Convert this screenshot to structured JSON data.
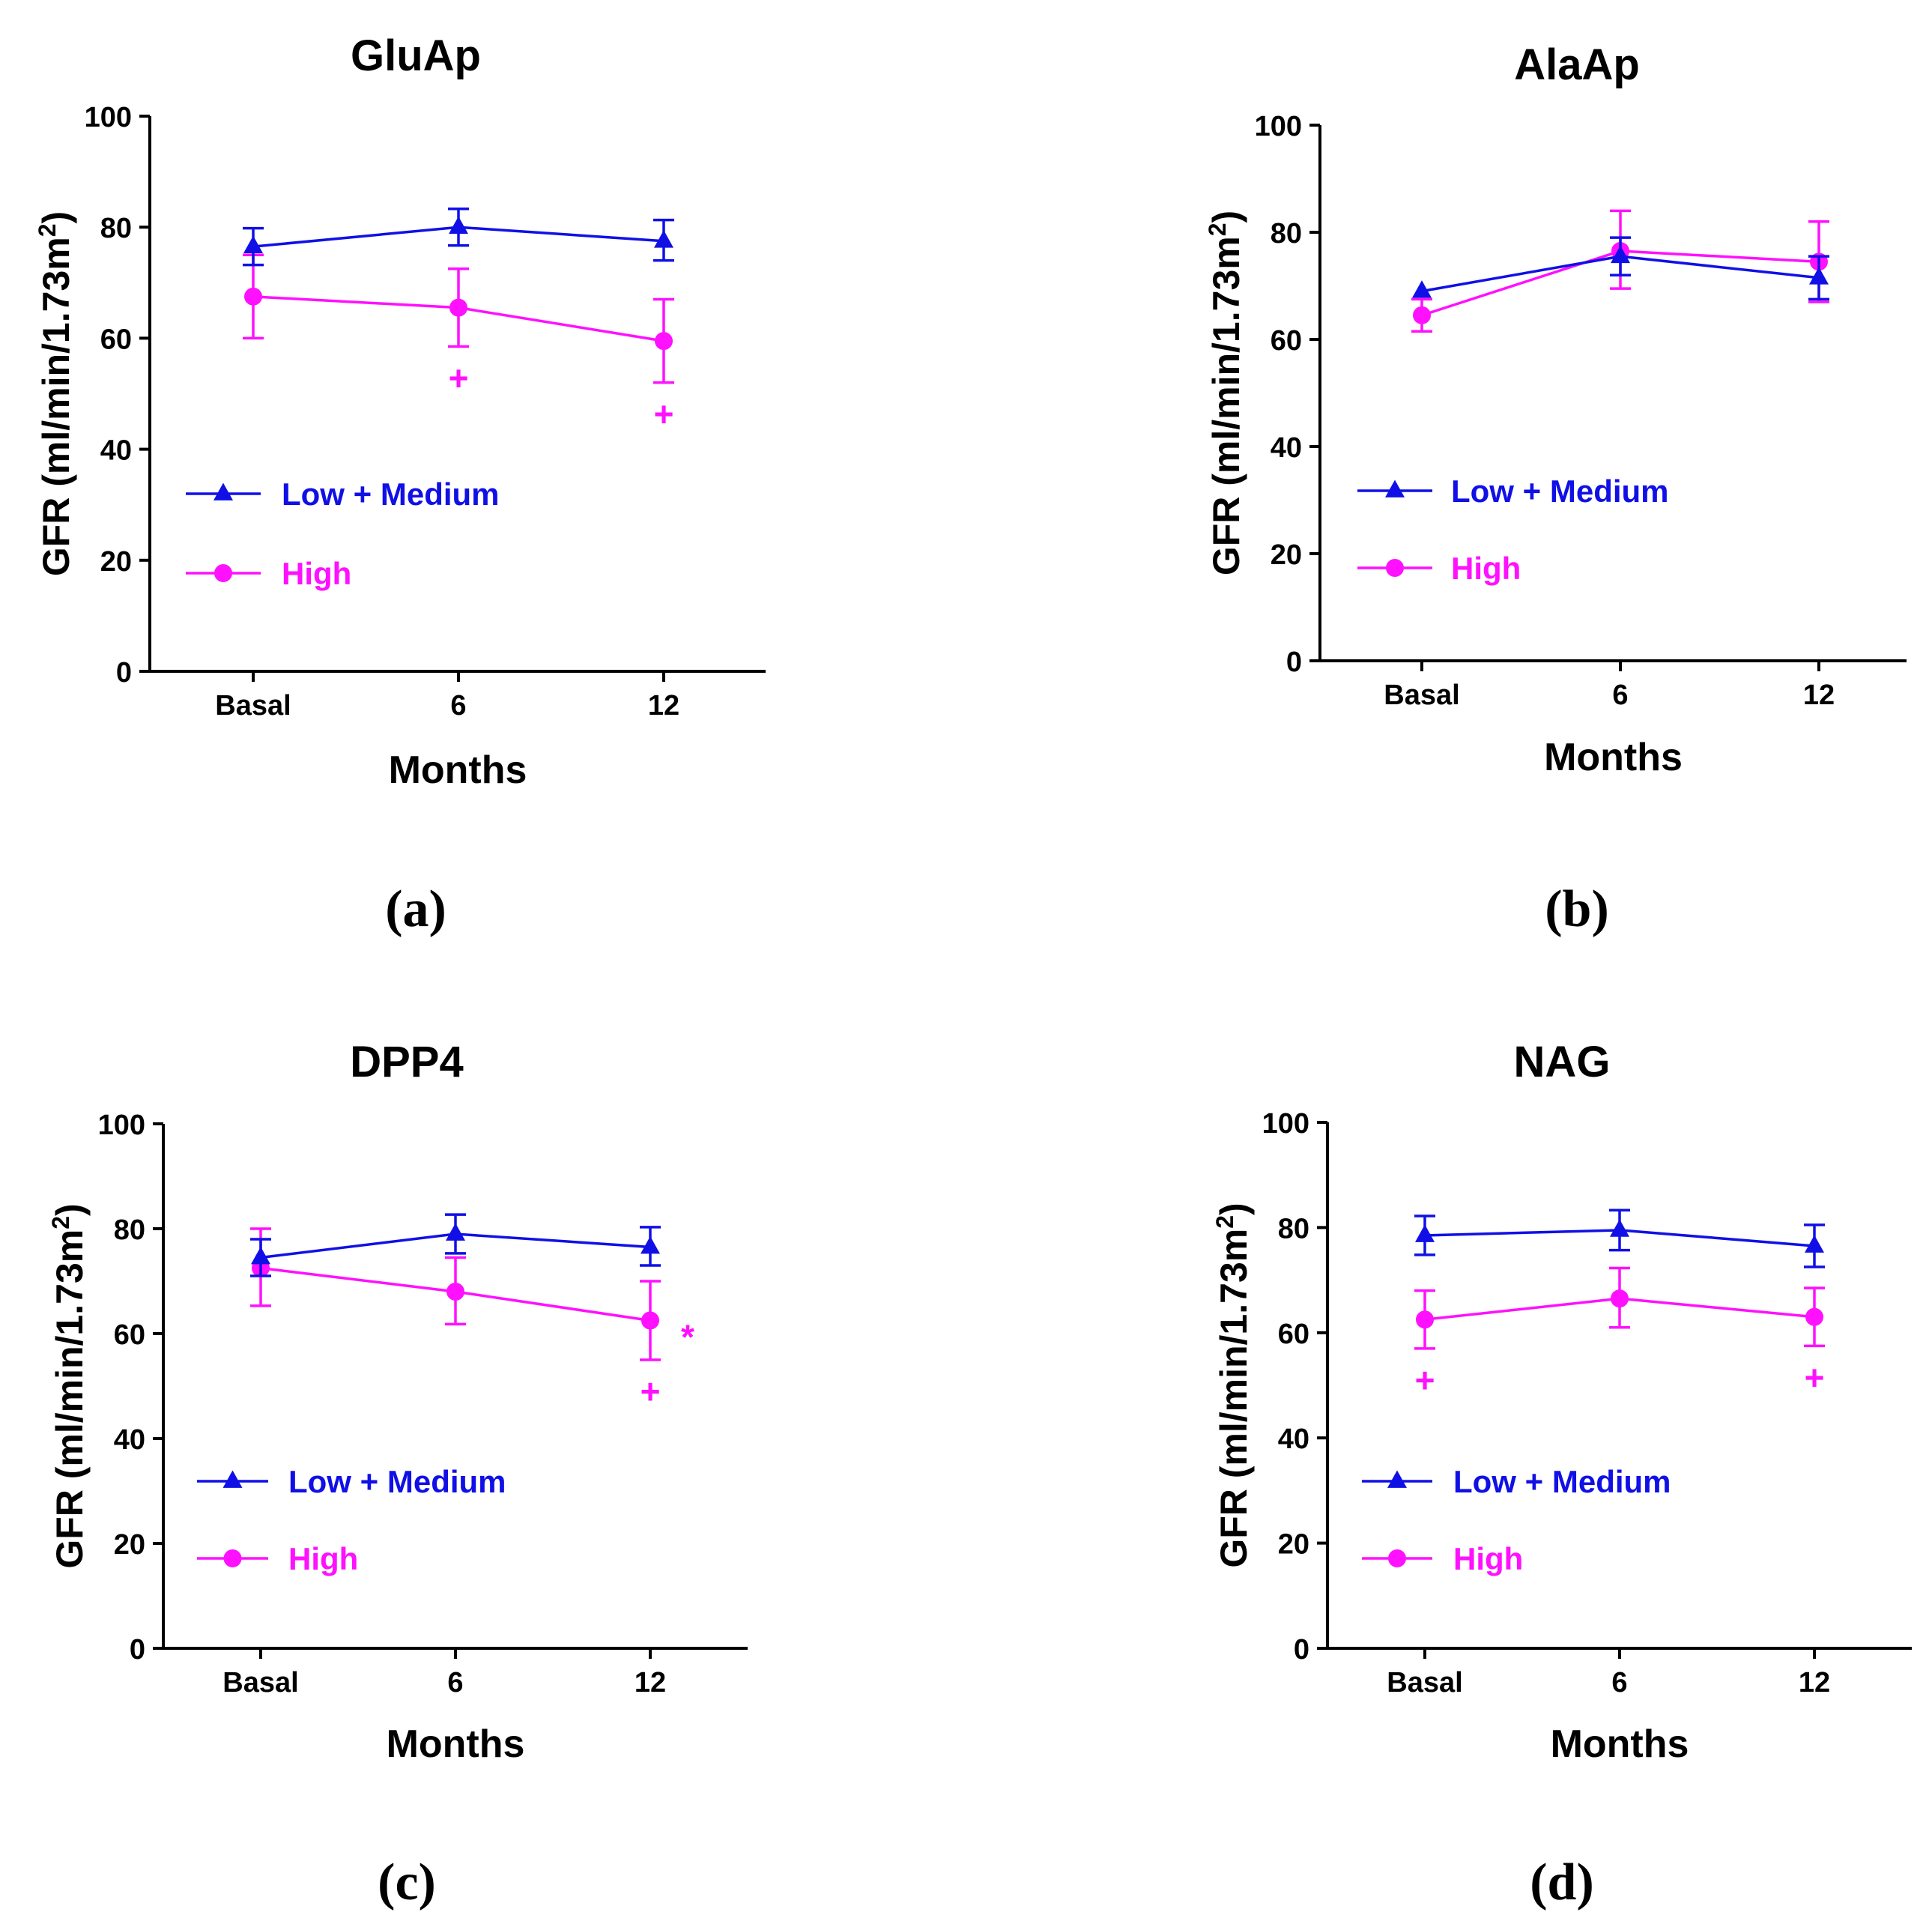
{
  "colors": {
    "low_medium": "#1010e6",
    "high": "#ff10ff",
    "axis": "#000000"
  },
  "chart_data": [
    {
      "type": "line",
      "title": "GluAp",
      "panel_label": "(a)",
      "xlabel": "Months",
      "ylabel": "GFR (ml/min/1.73m",
      "ylabel_sup": "2",
      "ylabel_close": ")",
      "categories": [
        "Basal",
        "6",
        "12"
      ],
      "ylim": [
        0,
        100
      ],
      "yticks": [
        "0",
        "20",
        "40",
        "60",
        "80",
        "100"
      ],
      "series": [
        {
          "name": "Low + Medium",
          "marker": "triangle",
          "values": [
            76.5,
            80,
            77.5
          ],
          "err_upper": [
            3.3,
            3.3,
            3.8
          ],
          "err_lower": [
            3.3,
            3.3,
            3.5
          ]
        },
        {
          "name": "High",
          "marker": "circle",
          "values": [
            67.5,
            65.5,
            59.5
          ],
          "err_upper": [
            7.5,
            7.0,
            7.5
          ],
          "err_lower": [
            7.5,
            7.0,
            7.5
          ]
        }
      ],
      "annotations": [
        {
          "text": "+",
          "category": 1,
          "series": "High"
        },
        {
          "text": "+",
          "category": 2,
          "series": "High"
        }
      ]
    },
    {
      "type": "line",
      "title": "AlaAp",
      "panel_label": "(b)",
      "xlabel": "Months",
      "ylabel": "GFR (ml/min/1.73m",
      "ylabel_sup": "2",
      "ylabel_close": ")",
      "categories": [
        "Basal",
        "6",
        "12"
      ],
      "ylim": [
        0,
        100
      ],
      "yticks": [
        "0",
        "20",
        "40",
        "60",
        "80",
        "100"
      ],
      "series": [
        {
          "name": "Low + Medium",
          "marker": "triangle",
          "values": [
            69,
            75.5,
            71.5
          ],
          "err_upper": [
            0,
            3.5,
            4.0
          ],
          "err_lower": [
            0,
            3.5,
            4.0
          ]
        },
        {
          "name": "High",
          "marker": "circle",
          "values": [
            64.5,
            76.5,
            74.5
          ],
          "err_upper": [
            3.0,
            7.5,
            7.5
          ],
          "err_lower": [
            3.0,
            7.0,
            7.5
          ]
        }
      ],
      "annotations": []
    },
    {
      "type": "line",
      "title": "DPP4",
      "panel_label": "(c)",
      "xlabel": "Months",
      "ylabel": "GFR (ml/min/1.73m",
      "ylabel_sup": "2",
      "ylabel_close": ")",
      "categories": [
        "Basal",
        "6",
        "12"
      ],
      "ylim": [
        0,
        100
      ],
      "yticks": [
        "0",
        "20",
        "40",
        "60",
        "80",
        "100"
      ],
      "series": [
        {
          "name": "Low + Medium",
          "marker": "triangle",
          "values": [
            74.5,
            79,
            76.5
          ],
          "err_upper": [
            3.5,
            3.7,
            3.8
          ],
          "err_lower": [
            3.5,
            3.7,
            3.5
          ]
        },
        {
          "name": "High",
          "marker": "circle",
          "values": [
            72.5,
            68,
            62.5
          ],
          "err_upper": [
            7.5,
            6.5,
            7.5
          ],
          "err_lower": [
            7.2,
            6.2,
            7.5
          ]
        }
      ],
      "annotations": [
        {
          "text": "*",
          "category": 2,
          "series": "High"
        },
        {
          "text": "+",
          "category": 2,
          "series": "High"
        }
      ]
    },
    {
      "type": "line",
      "title": "NAG",
      "panel_label": "(d)",
      "xlabel": "Months",
      "ylabel": "GFR (ml/min/1.73m",
      "ylabel_sup": "2",
      "ylabel_close": ")",
      "categories": [
        "Basal",
        "6",
        "12"
      ],
      "ylim": [
        0,
        100
      ],
      "yticks": [
        "0",
        "20",
        "40",
        "60",
        "80",
        "100"
      ],
      "series": [
        {
          "name": "Low + Medium",
          "marker": "triangle",
          "values": [
            78.5,
            79.5,
            76.5
          ],
          "err_upper": [
            3.7,
            3.8,
            4.0
          ],
          "err_lower": [
            3.7,
            3.8,
            4.0
          ]
        },
        {
          "name": "High",
          "marker": "circle",
          "values": [
            62.5,
            66.5,
            63
          ],
          "err_upper": [
            5.5,
            5.8,
            5.5
          ],
          "err_lower": [
            5.5,
            5.5,
            5.5
          ]
        }
      ],
      "annotations": [
        {
          "text": "+",
          "category": 0,
          "series": "High"
        },
        {
          "text": "+",
          "category": 2,
          "series": "High"
        }
      ]
    }
  ]
}
